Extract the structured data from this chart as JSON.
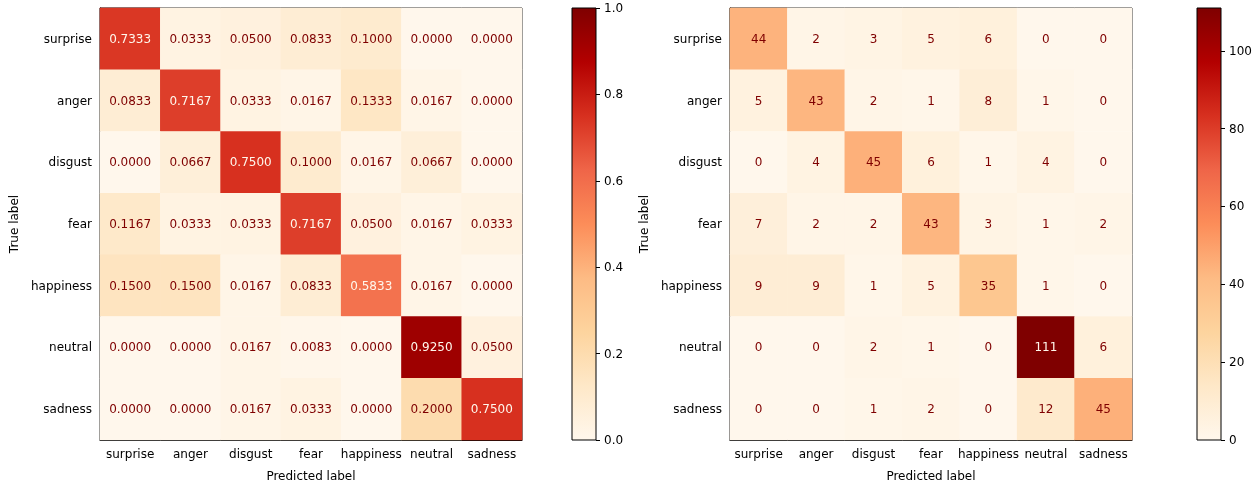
{
  "chart_data": [
    {
      "type": "heatmap",
      "xlabel": "Predicted label",
      "ylabel": "True label",
      "categories": [
        "surprise",
        "anger",
        "disgust",
        "fear",
        "happiness",
        "neutral",
        "sadness"
      ],
      "y_categories": [
        "surprise",
        "anger",
        "disgust",
        "fear",
        "happiness",
        "neutral",
        "sadness"
      ],
      "cells": [
        [
          0.7333,
          0.0333,
          0.05,
          0.0833,
          0.1,
          0,
          0
        ],
        [
          0.0833,
          0.7167,
          0.0333,
          0.0167,
          0.1333,
          0.0167,
          0
        ],
        [
          0,
          0.0667,
          0.75,
          0.1,
          0.0167,
          0.0667,
          0
        ],
        [
          0.1167,
          0.0333,
          0.0333,
          0.7167,
          0.05,
          0.0167,
          0.0333
        ],
        [
          0.15,
          0.15,
          0.0167,
          0.0833,
          0.5833,
          0.0167,
          0
        ],
        [
          0,
          0,
          0.0167,
          0.0083,
          0,
          0.925,
          0.05
        ],
        [
          0,
          0,
          0.0167,
          0.0333,
          0,
          0.2,
          0.75
        ]
      ],
      "cell_labels": [
        [
          "0.7333",
          "0.0333",
          "0.0500",
          "0.0833",
          "0.1000",
          "0.0000",
          "0.0000"
        ],
        [
          "0.0833",
          "0.7167",
          "0.0333",
          "0.0167",
          "0.1333",
          "0.0167",
          "0.0000"
        ],
        [
          "0.0000",
          "0.0667",
          "0.7500",
          "0.1000",
          "0.0167",
          "0.0667",
          "0.0000"
        ],
        [
          "0.1167",
          "0.0333",
          "0.0333",
          "0.7167",
          "0.0500",
          "0.0167",
          "0.0333"
        ],
        [
          "0.1500",
          "0.1500",
          "0.0167",
          "0.0833",
          "0.5833",
          "0.0167",
          "0.0000"
        ],
        [
          "0.0000",
          "0.0000",
          "0.0167",
          "0.0083",
          "0.0000",
          "0.9250",
          "0.0500"
        ],
        [
          "0.0000",
          "0.0000",
          "0.0167",
          "0.0333",
          "0.0000",
          "0.2000",
          "0.7500"
        ]
      ],
      "clim": [
        0,
        1
      ],
      "cticks": [
        {
          "value": 0,
          "label": "0.0"
        },
        {
          "value": 0.2,
          "label": "0.2"
        },
        {
          "value": 0.4,
          "label": "0.4"
        },
        {
          "value": 0.6,
          "label": "0.6"
        },
        {
          "value": 0.8,
          "label": "0.8"
        },
        {
          "value": 1,
          "label": "1.0"
        }
      ]
    },
    {
      "type": "heatmap",
      "xlabel": "Predicted label",
      "ylabel": "True label",
      "categories": [
        "surprise",
        "anger",
        "disgust",
        "fear",
        "happiness",
        "neutral",
        "sadness"
      ],
      "y_categories": [
        "surprise",
        "anger",
        "disgust",
        "fear",
        "happiness",
        "neutral",
        "sadness"
      ],
      "cells": [
        [
          44,
          2,
          3,
          5,
          6,
          0,
          0
        ],
        [
          5,
          43,
          2,
          1,
          8,
          1,
          0
        ],
        [
          0,
          4,
          45,
          6,
          1,
          4,
          0
        ],
        [
          7,
          2,
          2,
          43,
          3,
          1,
          2
        ],
        [
          9,
          9,
          1,
          5,
          35,
          1,
          0
        ],
        [
          0,
          0,
          2,
          1,
          0,
          111,
          6
        ],
        [
          0,
          0,
          1,
          2,
          0,
          12,
          45
        ]
      ],
      "data_labels": true,
      "clim": [
        0,
        111
      ],
      "cticks": [
        0,
        20,
        40,
        60,
        80,
        100
      ]
    }
  ]
}
